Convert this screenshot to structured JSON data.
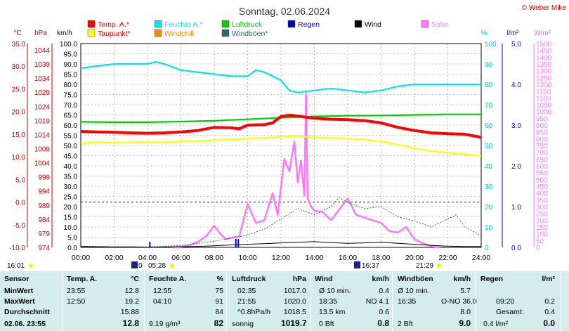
{
  "title": "Sonntag, 02.06.2024",
  "copyright": "© Weber Mike",
  "legend": [
    {
      "label": "Temp. A.*",
      "color": "#ff0000"
    },
    {
      "label": "Feuchte A.*",
      "color": "#00e5ee"
    },
    {
      "label": "Luftdruck",
      "color": "#00cc00"
    },
    {
      "label": "Regen",
      "color": "#0000cc"
    },
    {
      "label": "Wind",
      "color": "#000000"
    },
    {
      "label": "Solar",
      "color": "#ff77ff"
    },
    {
      "label": "Taupunkt*",
      "color": "#ffff00"
    },
    {
      "label": "Windchill",
      "color": "#ff8800"
    },
    {
      "label": "Windböen*",
      "color": "#336666"
    }
  ],
  "axis_units": {
    "temp": "°C",
    "press": "hPa",
    "wind": "km/h",
    "hum": "%",
    "rain": "l/m²",
    "solar": "W/m²"
  },
  "axes": {
    "temp_ticks": [
      "35.0",
      "30.0",
      "25.0",
      "20.0",
      "15.0",
      "10.0",
      "5.0",
      "0.0",
      "-5.0",
      "-10.0"
    ],
    "press_ticks": [
      "1044",
      "1039",
      "1034",
      "1029",
      "1024",
      "1019",
      "1014",
      "1009",
      "1004",
      "999",
      "994",
      "989",
      "984",
      "979",
      "974"
    ],
    "wind_ticks": [
      "100.0",
      "95.0",
      "90.0",
      "85.0",
      "80.0",
      "75.0",
      "70.0",
      "65.0",
      "60.0",
      "55.0",
      "50.0",
      "45.0",
      "40.0",
      "35.0",
      "30.0",
      "25.0",
      "20.0",
      "15.0",
      "10.0",
      "5.0",
      "0.0"
    ],
    "hum_ticks": [
      "100",
      "90",
      "80",
      "70",
      "60",
      "50",
      "40",
      "30",
      "20",
      "10",
      "0"
    ],
    "rain_ticks": [
      "5.0",
      "4.0",
      "3.0",
      "2.0",
      "1.0",
      "0.0"
    ],
    "solar_ticks": [
      "1500",
      "1450",
      "1400",
      "1350",
      "1300",
      "1250",
      "1200",
      "1150",
      "1100",
      "1050",
      "1000",
      "950",
      "900",
      "850",
      "800",
      "750",
      "700",
      "650",
      "600",
      "550",
      "500",
      "450",
      "400",
      "350",
      "300",
      "250",
      "200",
      "150",
      "100",
      "50",
      "0"
    ],
    "x_ticks": [
      "00:00",
      "02:00",
      "04:00",
      "06:00",
      "08:00",
      "10:00",
      "12:00",
      "14:00",
      "16:00",
      "18:00",
      "20:00",
      "22:00",
      "24:00"
    ]
  },
  "sun_events": {
    "sunrise_time": "05:28",
    "sunset_time": "21:29",
    "moon_text": "0",
    "moon2_time": "16:37",
    "left_time": "16:01"
  },
  "chart_data": {
    "type": "line",
    "x_unit": "hour",
    "xlim": [
      0,
      24
    ],
    "series": [
      {
        "name": "Temp. A.*",
        "axis": "°C",
        "ylim": [
          -10,
          35
        ],
        "x": [
          0,
          1,
          2,
          3,
          4,
          5,
          6,
          7,
          8,
          9,
          9.5,
          10,
          11,
          11.5,
          12,
          12.5,
          13,
          14,
          15,
          16,
          17,
          18,
          19,
          20,
          21,
          22,
          23,
          24
        ],
        "y": [
          15.6,
          15.5,
          15.4,
          15.3,
          15.2,
          15.3,
          15.5,
          15.8,
          16.5,
          16.4,
          16.2,
          17.0,
          17.1,
          17.5,
          18.9,
          19.2,
          19.0,
          18.5,
          18.3,
          18.2,
          18.0,
          17.5,
          16.5,
          15.8,
          15.3,
          15.1,
          15.0,
          14.3
        ]
      },
      {
        "name": "Taupunkt*",
        "axis": "°C",
        "ylim": [
          -10,
          35
        ],
        "x": [
          0,
          1,
          2,
          3,
          4,
          5,
          6,
          7,
          8,
          9,
          10,
          11,
          12,
          12.5,
          13,
          14,
          15,
          16,
          17,
          18,
          19,
          20,
          21,
          22,
          23,
          24
        ],
        "y": [
          13.0,
          13.2,
          13.1,
          13.2,
          13.3,
          13.2,
          13.4,
          13.5,
          13.7,
          13.8,
          14.0,
          14.2,
          14.4,
          14.6,
          14.5,
          14.3,
          14.2,
          14.0,
          13.8,
          13.4,
          12.7,
          11.9,
          11.3,
          10.9,
          10.6,
          10.2
        ]
      },
      {
        "name": "Feuchte A.*",
        "axis": "%",
        "ylim": [
          0,
          100
        ],
        "x": [
          0,
          1,
          2,
          3,
          4,
          4.5,
          5,
          6,
          7,
          8,
          9,
          10,
          10.5,
          11,
          12,
          12.5,
          13,
          14,
          15,
          16,
          17,
          18,
          19,
          20,
          21,
          22,
          23,
          24
        ],
        "y": [
          88,
          89,
          90,
          90,
          90,
          91,
          90,
          87,
          86,
          85,
          84,
          84,
          87,
          86,
          82,
          77,
          76,
          77,
          78,
          77,
          76,
          77,
          79,
          80,
          80,
          80,
          80,
          80
        ]
      },
      {
        "name": "Luftdruck",
        "axis": "hPa",
        "ylim": [
          974,
          1044
        ],
        "x": [
          0,
          2,
          4,
          6,
          8,
          10,
          12,
          14,
          16,
          18,
          20,
          22,
          24
        ],
        "y": [
          1017.1,
          1017.0,
          1017.0,
          1017.2,
          1017.5,
          1018.0,
          1018.5,
          1019.0,
          1019.2,
          1019.3,
          1019.5,
          1019.7,
          1019.7
        ]
      },
      {
        "name": "Wind",
        "axis": "km/h",
        "ylim": [
          0,
          100
        ],
        "x": [
          0,
          1,
          2,
          3,
          4,
          5,
          6,
          7,
          8,
          9,
          10,
          11,
          12,
          13,
          14,
          15,
          16,
          17,
          18,
          19,
          20,
          21,
          22,
          23,
          24
        ],
        "y": [
          0.5,
          0.3,
          0.2,
          0.2,
          0.1,
          0.2,
          0.3,
          0.5,
          0.8,
          1.2,
          1.5,
          1.8,
          2.2,
          2.5,
          2.8,
          2.3,
          2.0,
          2.2,
          2.5,
          2.0,
          1.5,
          1.0,
          0.6,
          0.4,
          0.4
        ]
      },
      {
        "name": "Windböen*",
        "axis": "km/h",
        "ylim": [
          0,
          100
        ],
        "x": [
          0,
          1,
          2,
          3,
          4,
          5,
          6,
          7,
          7.5,
          8,
          9,
          10,
          11,
          12,
          13,
          14,
          15,
          15.5,
          16,
          17,
          18,
          19,
          20,
          21,
          22,
          22.5,
          23,
          24
        ],
        "y": [
          0.5,
          0.5,
          0.3,
          0.3,
          0.2,
          0.5,
          1.0,
          2.0,
          2.5,
          3.0,
          4.5,
          6.0,
          9.0,
          14.0,
          19.0,
          16.0,
          20.0,
          24.5,
          22.0,
          19.0,
          20.0,
          15.0,
          13.0,
          10.0,
          14.0,
          16.0,
          10.0,
          5.7
        ]
      },
      {
        "name": "Solar",
        "axis": "W/m²",
        "ylim": [
          0,
          1500
        ],
        "x": [
          5.5,
          6,
          6.5,
          7,
          7.5,
          8,
          8.3,
          8.7,
          9,
          9.5,
          10,
          10.5,
          11,
          11.5,
          11.8,
          12.2,
          12.5,
          12.8,
          13,
          13.2,
          13.4,
          13.5,
          13.6,
          13.8,
          14,
          14.5,
          15,
          15.5,
          16,
          16.5,
          17,
          17.5,
          18,
          18.5,
          19,
          19.5,
          20,
          20.5,
          21,
          21.5
        ],
        "y": [
          0,
          5,
          15,
          40,
          80,
          160,
          110,
          60,
          70,
          80,
          320,
          180,
          200,
          400,
          240,
          650,
          560,
          780,
          480,
          640,
          380,
          1140,
          360,
          300,
          270,
          260,
          200,
          280,
          360,
          240,
          220,
          200,
          180,
          120,
          110,
          150,
          60,
          30,
          10,
          0
        ]
      }
    ]
  },
  "table": {
    "headers": [
      "Sensor",
      "Temp. A.",
      "°C",
      "Feuchte A.",
      "%",
      "Luftdruck",
      "hPa",
      "Wind",
      "km/h",
      "Windböen",
      "km/h",
      "Regen",
      "l/m²"
    ],
    "rows": [
      {
        "label": "MinWert",
        "cells": [
          "23:55",
          "12.8",
          "12:55",
          "75",
          "02:35",
          "1017.0",
          "Ø 10 min.",
          "0.4",
          "Ø 10 min.",
          "5.7",
          "",
          ""
        ]
      },
      {
        "label": "MaxWert",
        "cells": [
          "12:50",
          "19.2",
          "04:10",
          "91",
          "21:55",
          "1020.0",
          "18:35",
          "NO 4.1",
          "16:35",
          "O-NO 36.0",
          "09:20",
          "0.2"
        ]
      },
      {
        "label": "Durchschnitt",
        "cells": [
          "",
          "15.88",
          "",
          "84",
          "^0.8hPa/h",
          "1018.5",
          "13.5 km",
          "0.6",
          "",
          "8.0",
          "Gesamt:",
          "0.4"
        ]
      }
    ],
    "footer": {
      "label": "02.06. 23:55",
      "cells": [
        "",
        "12.8",
        "9.19 g/m³",
        "82",
        "sonnig",
        "1019.7",
        "0 Bft",
        "0.8",
        "2 Bft",
        "9.0",
        "0.4 l/m²",
        "0.0"
      ]
    }
  }
}
